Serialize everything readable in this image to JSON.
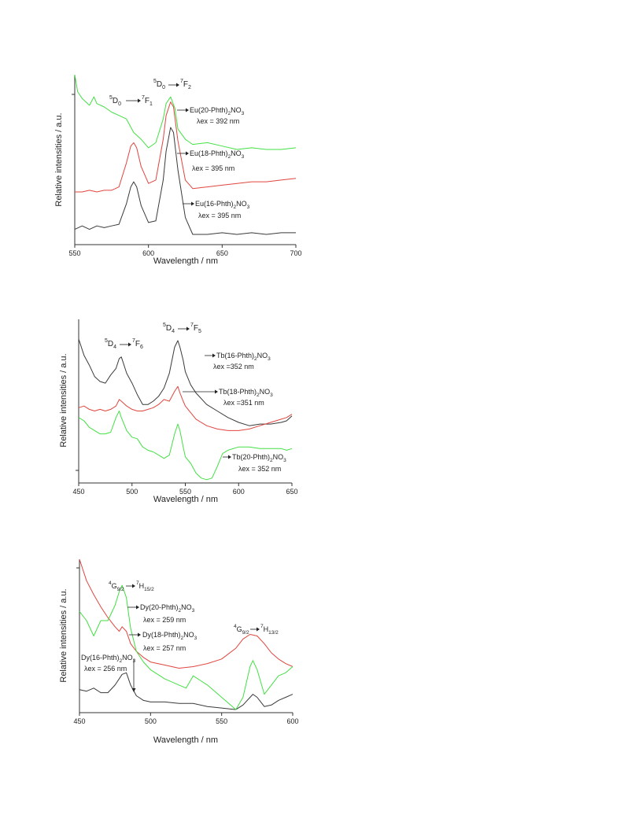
{
  "colors": {
    "black": "#3a3a3a",
    "red": "#e0453f",
    "green": "#43e043",
    "axis": "#333333"
  },
  "chart_data": [
    {
      "type": "line",
      "ylabel": "Relative intensities / a.u.",
      "xlabel": "Wavelength / nm",
      "xlim": [
        550,
        700
      ],
      "xticks": [
        550,
        600,
        650,
        700
      ],
      "ylim": [
        0,
        1
      ],
      "y_ticks_labeled": false,
      "series": [
        {
          "name": "Eu(16-Phth)2NO3",
          "color": "#3a3a3a",
          "x": [
            550,
            555,
            560,
            565,
            570,
            575,
            580,
            585,
            588,
            590,
            592,
            595,
            600,
            605,
            610,
            612,
            615,
            617,
            620,
            625,
            630,
            640,
            650,
            660,
            670,
            680,
            690,
            700
          ],
          "y": [
            0.09,
            0.11,
            0.09,
            0.11,
            0.1,
            0.11,
            0.12,
            0.24,
            0.34,
            0.37,
            0.34,
            0.23,
            0.13,
            0.14,
            0.38,
            0.55,
            0.69,
            0.66,
            0.44,
            0.16,
            0.06,
            0.06,
            0.07,
            0.06,
            0.07,
            0.06,
            0.07,
            0.07
          ]
        },
        {
          "name": "Eu(18-Phth)2NO3",
          "color": "#e0453f",
          "x": [
            550,
            555,
            560,
            565,
            570,
            575,
            580,
            585,
            588,
            590,
            592,
            595,
            600,
            605,
            610,
            612,
            615,
            617,
            620,
            625,
            630,
            640,
            650,
            660,
            670,
            680,
            690,
            700
          ],
          "y": [
            0.31,
            0.31,
            0.32,
            0.31,
            0.32,
            0.32,
            0.34,
            0.48,
            0.58,
            0.6,
            0.57,
            0.46,
            0.36,
            0.38,
            0.62,
            0.76,
            0.84,
            0.81,
            0.61,
            0.38,
            0.33,
            0.34,
            0.35,
            0.36,
            0.37,
            0.37,
            0.38,
            0.39
          ]
        },
        {
          "name": "Eu(20-Phth)2NO3",
          "color": "#43e043",
          "x": [
            550,
            552,
            555,
            560,
            563,
            565,
            570,
            575,
            580,
            585,
            590,
            595,
            600,
            605,
            610,
            612,
            615,
            618,
            620,
            625,
            630,
            640,
            650,
            660,
            670,
            680,
            690,
            700
          ],
          "y": [
            1.0,
            0.9,
            0.86,
            0.82,
            0.87,
            0.83,
            0.81,
            0.78,
            0.76,
            0.74,
            0.66,
            0.62,
            0.57,
            0.6,
            0.74,
            0.83,
            0.87,
            0.8,
            0.68,
            0.62,
            0.59,
            0.6,
            0.58,
            0.56,
            0.57,
            0.56,
            0.56,
            0.57
          ]
        }
      ],
      "annotations": {
        "t1": {
          "a": "5",
          "b": "D",
          "c": "0",
          "d": "7",
          "e": "F",
          "f": "1"
        },
        "t2": {
          "a": "5",
          "b": "D",
          "c": "0",
          "d": "7",
          "e": "F",
          "f": "2"
        }
      },
      "legend": [
        {
          "pre": "Eu(20-Phth)",
          "sub": "2",
          "post": "NO",
          "sub2": "3",
          "ex": "λex = 392 nm"
        },
        {
          "pre": "Eu(18-Phth)",
          "sub": "2",
          "post": "NO",
          "sub2": "3",
          "ex": "λex = 395 nm"
        },
        {
          "pre": "Eu(16-Phth)",
          "sub": "2",
          "post": "NO",
          "sub2": "3",
          "ex": "λex = 395 nm"
        }
      ]
    },
    {
      "type": "line",
      "ylabel": "Relative intensities / a.u.",
      "xlabel": "Wavelength / nm",
      "xlim": [
        450,
        650
      ],
      "xticks": [
        450,
        500,
        550,
        600,
        650
      ],
      "ylim": [
        0,
        1
      ],
      "y_ticks_labeled": false,
      "series": [
        {
          "name": "Tb(16-Phth)2NO3",
          "color": "#3a3a3a",
          "x": [
            450,
            455,
            460,
            465,
            470,
            475,
            480,
            485,
            488,
            490,
            495,
            500,
            505,
            510,
            515,
            520,
            525,
            530,
            535,
            540,
            543,
            545,
            548,
            550,
            555,
            560,
            570,
            580,
            590,
            600,
            610,
            620,
            630,
            640,
            645,
            650
          ],
          "y": [
            0.88,
            0.78,
            0.72,
            0.65,
            0.62,
            0.61,
            0.66,
            0.7,
            0.76,
            0.77,
            0.67,
            0.61,
            0.54,
            0.48,
            0.48,
            0.5,
            0.53,
            0.58,
            0.67,
            0.83,
            0.87,
            0.83,
            0.75,
            0.68,
            0.6,
            0.55,
            0.48,
            0.44,
            0.4,
            0.37,
            0.35,
            0.36,
            0.36,
            0.37,
            0.38,
            0.41
          ]
        },
        {
          "name": "Tb(18-Phth)2NO3",
          "color": "#e0453f",
          "x": [
            450,
            455,
            460,
            465,
            470,
            475,
            480,
            485,
            488,
            490,
            495,
            500,
            505,
            510,
            515,
            520,
            525,
            530,
            535,
            540,
            543,
            545,
            548,
            550,
            555,
            560,
            570,
            580,
            590,
            600,
            610,
            620,
            630,
            640,
            645,
            650
          ],
          "y": [
            0.46,
            0.47,
            0.45,
            0.44,
            0.45,
            0.44,
            0.45,
            0.47,
            0.51,
            0.5,
            0.47,
            0.45,
            0.44,
            0.44,
            0.45,
            0.46,
            0.48,
            0.51,
            0.5,
            0.56,
            0.59,
            0.55,
            0.5,
            0.47,
            0.43,
            0.39,
            0.35,
            0.33,
            0.32,
            0.32,
            0.33,
            0.35,
            0.37,
            0.39,
            0.4,
            0.42
          ]
        },
        {
          "name": "Tb(20-Phth)2NO3",
          "color": "#43e043",
          "x": [
            450,
            455,
            460,
            465,
            470,
            475,
            480,
            485,
            488,
            490,
            495,
            500,
            505,
            510,
            515,
            520,
            525,
            530,
            535,
            540,
            543,
            545,
            548,
            550,
            555,
            560,
            565,
            570,
            575,
            580,
            585,
            590,
            600,
            610,
            620,
            630,
            640,
            645,
            650
          ],
          "y": [
            0.4,
            0.38,
            0.34,
            0.32,
            0.3,
            0.3,
            0.31,
            0.4,
            0.44,
            0.4,
            0.32,
            0.28,
            0.27,
            0.22,
            0.2,
            0.19,
            0.17,
            0.15,
            0.17,
            0.3,
            0.36,
            0.32,
            0.22,
            0.16,
            0.12,
            0.06,
            0.03,
            0.02,
            0.03,
            0.1,
            0.18,
            0.2,
            0.22,
            0.22,
            0.21,
            0.21,
            0.21,
            0.2,
            0.21
          ]
        }
      ],
      "annotations": {
        "t1": {
          "a": "5",
          "b": "D",
          "c": "4",
          "d": "7",
          "e": "F",
          "f": "6"
        },
        "t2": {
          "a": "5",
          "b": "D",
          "c": "4",
          "d": "7",
          "e": "F",
          "f": "5"
        }
      },
      "legend": [
        {
          "pre": "Tb(16-Phth)",
          "sub": "2",
          "post": "NO",
          "sub2": "3",
          "ex": "λex =352 nm"
        },
        {
          "pre": "Tb(18-Phth)",
          "sub": "2",
          "post": "NO",
          "sub2": "3",
          "ex": "λex =351 nm"
        },
        {
          "pre": "Tb(20-Phth)",
          "sub": "2",
          "post": "NO",
          "sub2": "3",
          "ex": "λex = 352 nm"
        }
      ]
    },
    {
      "type": "line",
      "ylabel": "Relative intensities / a.u.",
      "xlabel": "Wavelength / nm",
      "xlim": [
        450,
        600
      ],
      "xticks": [
        450,
        500,
        550,
        600
      ],
      "ylim": [
        0,
        1
      ],
      "y_ticks_labeled": false,
      "series": [
        {
          "name": "Dy(16-Phth)2NO3",
          "color": "#3a3a3a",
          "x": [
            450,
            455,
            460,
            465,
            470,
            475,
            480,
            483,
            486,
            490,
            495,
            500,
            510,
            520,
            530,
            540,
            550,
            560,
            565,
            570,
            572,
            575,
            580,
            585,
            590,
            595,
            600
          ],
          "y": [
            0.15,
            0.14,
            0.16,
            0.13,
            0.13,
            0.18,
            0.25,
            0.26,
            0.18,
            0.11,
            0.08,
            0.07,
            0.07,
            0.06,
            0.06,
            0.04,
            0.03,
            0.02,
            0.05,
            0.1,
            0.12,
            0.1,
            0.04,
            0.05,
            0.08,
            0.1,
            0.12
          ]
        },
        {
          "name": "Dy(18-Phth)2NO3",
          "color": "#e0453f",
          "x": [
            450,
            455,
            460,
            465,
            470,
            475,
            478,
            480,
            483,
            486,
            490,
            495,
            500,
            510,
            520,
            530,
            540,
            550,
            560,
            565,
            570,
            575,
            580,
            585,
            590,
            595,
            600
          ],
          "y": [
            1.0,
            0.86,
            0.77,
            0.69,
            0.62,
            0.56,
            0.53,
            0.56,
            0.53,
            0.45,
            0.4,
            0.36,
            0.33,
            0.31,
            0.29,
            0.3,
            0.32,
            0.35,
            0.42,
            0.48,
            0.51,
            0.5,
            0.45,
            0.39,
            0.35,
            0.32,
            0.3
          ]
        },
        {
          "name": "Dy(20-Phth)2NO3",
          "color": "#43e043",
          "x": [
            450,
            455,
            460,
            465,
            470,
            475,
            478,
            480,
            483,
            486,
            490,
            495,
            500,
            510,
            520,
            525,
            530,
            540,
            550,
            555,
            560,
            565,
            570,
            572,
            575,
            580,
            585,
            590,
            595,
            600
          ],
          "y": [
            0.66,
            0.6,
            0.5,
            0.6,
            0.6,
            0.7,
            0.79,
            0.83,
            0.75,
            0.55,
            0.4,
            0.33,
            0.28,
            0.22,
            0.18,
            0.16,
            0.24,
            0.18,
            0.1,
            0.06,
            0.02,
            0.1,
            0.3,
            0.34,
            0.28,
            0.12,
            0.18,
            0.24,
            0.26,
            0.3
          ]
        }
      ],
      "annotations": {
        "t1": {
          "a": "4",
          "b": "G",
          "c": "9/2",
          "d": "7",
          "e": "H",
          "f": "15/2"
        },
        "t2": {
          "a": "4",
          "b": "G",
          "c": "9/2",
          "d": "7",
          "e": "H",
          "f": "13/2"
        }
      },
      "legend": [
        {
          "pre": "Dy(20-Phth)",
          "sub": "2",
          "post": "NO",
          "sub2": "3",
          "ex": "λex = 259 nm"
        },
        {
          "pre": "Dy(18-Phth)",
          "sub": "2",
          "post": "NO",
          "sub2": "3",
          "ex": "λex = 257 nm"
        },
        {
          "pre": "Dy(16-Phth)",
          "sub": "2",
          "post": "NO",
          "sub2": "3",
          "ex": "λex = 256 nm"
        }
      ]
    }
  ]
}
